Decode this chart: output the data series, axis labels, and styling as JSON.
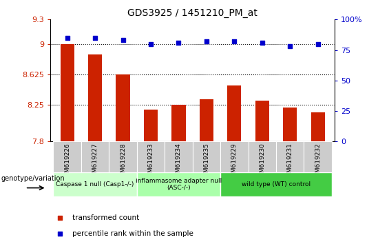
{
  "title": "GDS3925 / 1451210_PM_at",
  "samples": [
    "GSM619226",
    "GSM619227",
    "GSM619228",
    "GSM619233",
    "GSM619234",
    "GSM619235",
    "GSM619229",
    "GSM619230",
    "GSM619231",
    "GSM619232"
  ],
  "bar_values": [
    9.0,
    8.87,
    8.625,
    8.19,
    8.25,
    8.32,
    8.49,
    8.3,
    8.22,
    8.16
  ],
  "percentile_values": [
    85,
    85,
    83,
    80,
    81,
    82,
    82,
    81,
    78,
    80
  ],
  "bar_color": "#cc2200",
  "dot_color": "#0000cc",
  "ylim_left": [
    7.8,
    9.3
  ],
  "ylim_right": [
    0,
    100
  ],
  "yticks_left": [
    7.8,
    8.25,
    8.625,
    9.0,
    9.3
  ],
  "ytick_labels_left": [
    "7.8",
    "8.25",
    "8.625",
    "9",
    "9.3"
  ],
  "yticks_right": [
    0,
    25,
    50,
    75,
    100
  ],
  "ytick_labels_right": [
    "0",
    "25",
    "50",
    "75",
    "100%"
  ],
  "hlines": [
    9.0,
    8.625,
    8.25
  ],
  "groups": [
    {
      "label": "Caspase 1 null (Casp1-/-)",
      "start": 0,
      "end": 3,
      "color": "#ccffcc"
    },
    {
      "label": "inflammasome adapter null\n(ASC-/-)",
      "start": 3,
      "end": 6,
      "color": "#aaffaa"
    },
    {
      "label": "wild type (WT) control",
      "start": 6,
      "end": 10,
      "color": "#44cc44"
    }
  ],
  "legend_items": [
    {
      "label": "transformed count",
      "color": "#cc2200"
    },
    {
      "label": "percentile rank within the sample",
      "color": "#0000cc"
    }
  ],
  "genotype_label": "genotype/variation",
  "background_color": "#ffffff",
  "tick_area_color": "#cccccc",
  "bar_width": 0.5,
  "xlim": [
    -0.6,
    9.6
  ]
}
